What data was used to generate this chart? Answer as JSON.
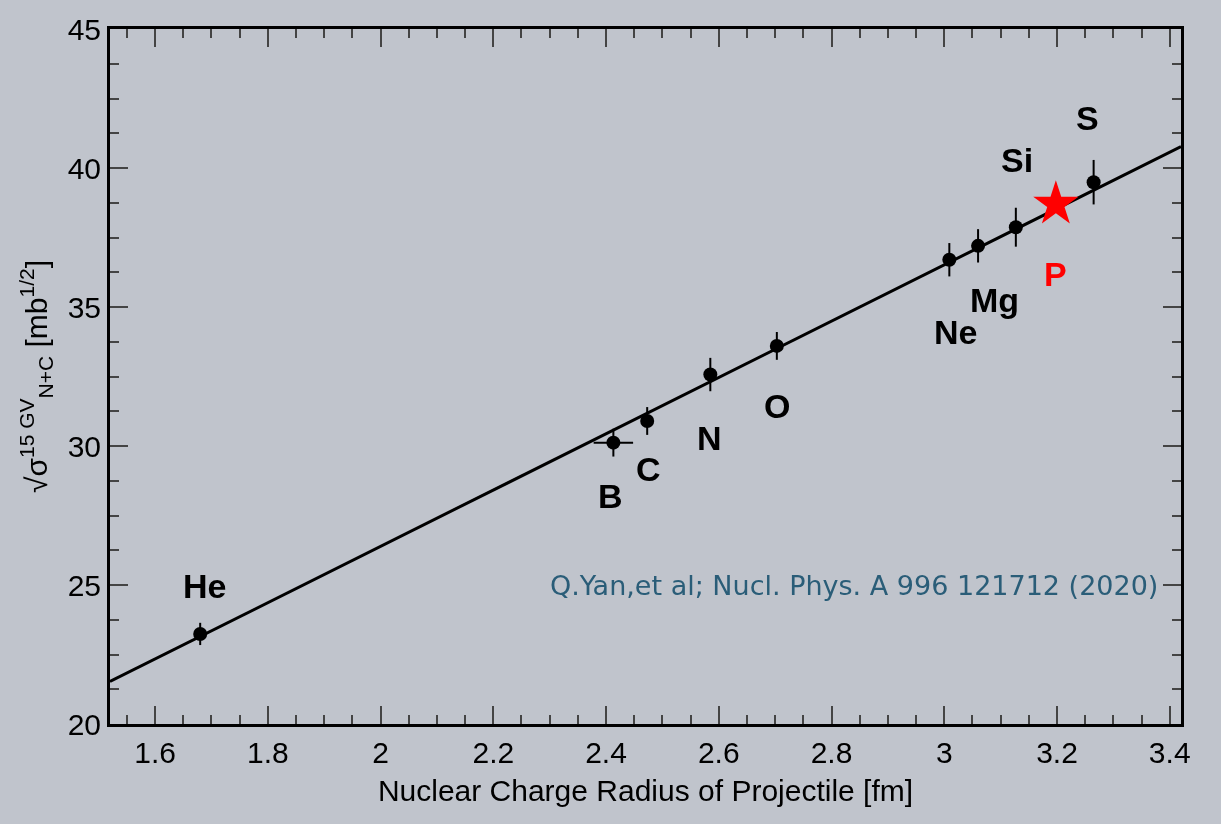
{
  "chart_data": {
    "type": "scatter",
    "xlabel": "Nuclear Charge Radius of Projectile [fm]",
    "ylabel": "√σ$^{15 GV}$$_{N+C}$ [mb$^{1/2}$]",
    "x": [
      1.68,
      2.413,
      2.473,
      2.585,
      2.703,
      3.009,
      3.06,
      3.127,
      3.265
    ],
    "series": [
      {
        "color": "#000000",
        "values": [
          23.24,
          30.12,
          30.9,
          32.57,
          33.6,
          36.7,
          37.2,
          37.87,
          39.49
        ],
        "errors": [
          0.4,
          0.5,
          0.5,
          0.6,
          0.5,
          0.6,
          0.6,
          0.7,
          0.8
        ],
        "xerrors": [
          null,
          0.035,
          null,
          null,
          null,
          null,
          null,
          null,
          null
        ],
        "marker": "circle"
      },
      {
        "name": "P",
        "color": "#ff0000",
        "x": [
          3.198
        ],
        "values": [
          38.7
        ],
        "marker": "star"
      },
      {
        "type": "line",
        "color": "#000000",
        "x": [
          1.52,
          3.42
        ],
        "values": [
          21.53,
          40.77
        ],
        "line_style": "solid",
        "marker": "none"
      }
    ],
    "xlim": [
      1.52,
      3.42
    ],
    "xticks": [
      1.6,
      1.8,
      {
        "value": 2,
        "label": "2"
      },
      2.2,
      2.4,
      2.6,
      2.8,
      {
        "value": 3,
        "label": "3"
      },
      3.2,
      3.4
    ],
    "ylim": [
      20,
      45
    ],
    "yticks": [
      20,
      25,
      30,
      35,
      40,
      45
    ],
    "annotations": [
      {
        "text": "He",
        "x": 1.68,
        "y": 23.24
      },
      {
        "text": "B",
        "x": 2.413,
        "y": 30.12
      },
      {
        "text": "C",
        "x": 2.473,
        "y": 30.9
      },
      {
        "text": "N",
        "x": 2.585,
        "y": 32.57
      },
      {
        "text": "O",
        "x": 2.703,
        "y": 33.6
      },
      {
        "text": "Ne",
        "x": 3.009,
        "y": 36.7
      },
      {
        "text": "Mg",
        "x": 3.06,
        "y": 37.2
      },
      {
        "text": "Si",
        "x": 3.127,
        "y": 37.87
      },
      {
        "text": "S",
        "x": 3.265,
        "y": 39.49
      },
      "Q.Yan,et al; Nucl. Phys. A 996 121712 (2020)"
    ],
    "grid": false,
    "legend": false
  }
}
